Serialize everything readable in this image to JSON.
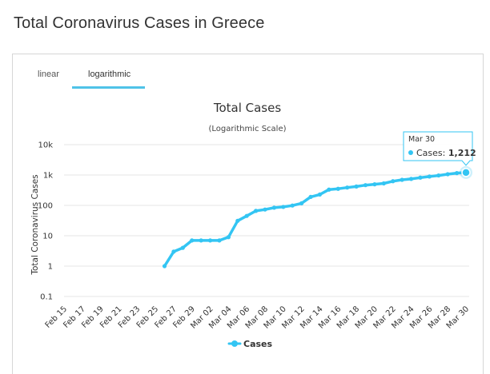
{
  "page": {
    "title": "Total Coronavirus Cases in Greece"
  },
  "tabs": [
    {
      "label": "linear",
      "active": false
    },
    {
      "label": "logarithmic",
      "active": true
    }
  ],
  "colors": {
    "series": "#33c5f3",
    "tab_underline": "#4fc3e8",
    "grid": "#e6e6e6"
  },
  "chart_data": {
    "type": "line",
    "title": "Total Cases",
    "subtitle": "(Logarithmic Scale)",
    "ylabel": "Total Coronavirus Cases",
    "xlabel": "",
    "yscale": "log",
    "ylim": [
      0.1,
      10000
    ],
    "y_ticks": [
      {
        "value": 10000,
        "label": "10k"
      },
      {
        "value": 1000,
        "label": "1k"
      },
      {
        "value": 100,
        "label": "100"
      },
      {
        "value": 10,
        "label": "10"
      },
      {
        "value": 1,
        "label": "1"
      },
      {
        "value": 0.1,
        "label": "0.1"
      }
    ],
    "grid": true,
    "legend": {
      "position": "bottom-center",
      "items": [
        "Cases"
      ]
    },
    "x_tick_labels": [
      "Feb 15",
      "Feb 17",
      "Feb 19",
      "Feb 21",
      "Feb 23",
      "Feb 25",
      "Feb 27",
      "Feb 29",
      "Mar 02",
      "Mar 04",
      "Mar 06",
      "Mar 08",
      "Mar 10",
      "Mar 12",
      "Mar 14",
      "Mar 16",
      "Mar 18",
      "Mar 20",
      "Mar 22",
      "Mar 24",
      "Mar 26",
      "Mar 28",
      "Mar 30"
    ],
    "x": [
      "Feb 15",
      "Feb 16",
      "Feb 17",
      "Feb 18",
      "Feb 19",
      "Feb 20",
      "Feb 21",
      "Feb 22",
      "Feb 23",
      "Feb 24",
      "Feb 25",
      "Feb 26",
      "Feb 27",
      "Feb 28",
      "Feb 29",
      "Mar 01",
      "Mar 02",
      "Mar 03",
      "Mar 04",
      "Mar 05",
      "Mar 06",
      "Mar 07",
      "Mar 08",
      "Mar 09",
      "Mar 10",
      "Mar 11",
      "Mar 12",
      "Mar 13",
      "Mar 14",
      "Mar 15",
      "Mar 16",
      "Mar 17",
      "Mar 18",
      "Mar 19",
      "Mar 20",
      "Mar 21",
      "Mar 22",
      "Mar 23",
      "Mar 24",
      "Mar 25",
      "Mar 26",
      "Mar 27",
      "Mar 28",
      "Mar 29",
      "Mar 30"
    ],
    "series": [
      {
        "name": "Cases",
        "values": [
          null,
          null,
          null,
          null,
          null,
          null,
          null,
          null,
          null,
          null,
          null,
          1,
          3,
          4,
          7,
          7,
          7,
          7,
          9,
          31,
          45,
          66,
          73,
          84,
          89,
          99,
          117,
          190,
          228,
          331,
          352,
          387,
          418,
          464,
          495,
          530,
          624,
          695,
          743,
          821,
          892,
          966,
          1061,
          1156,
          1212
        ]
      }
    ],
    "tooltip": {
      "date": "Mar 30",
      "label": "Cases",
      "value": "1,212"
    }
  }
}
